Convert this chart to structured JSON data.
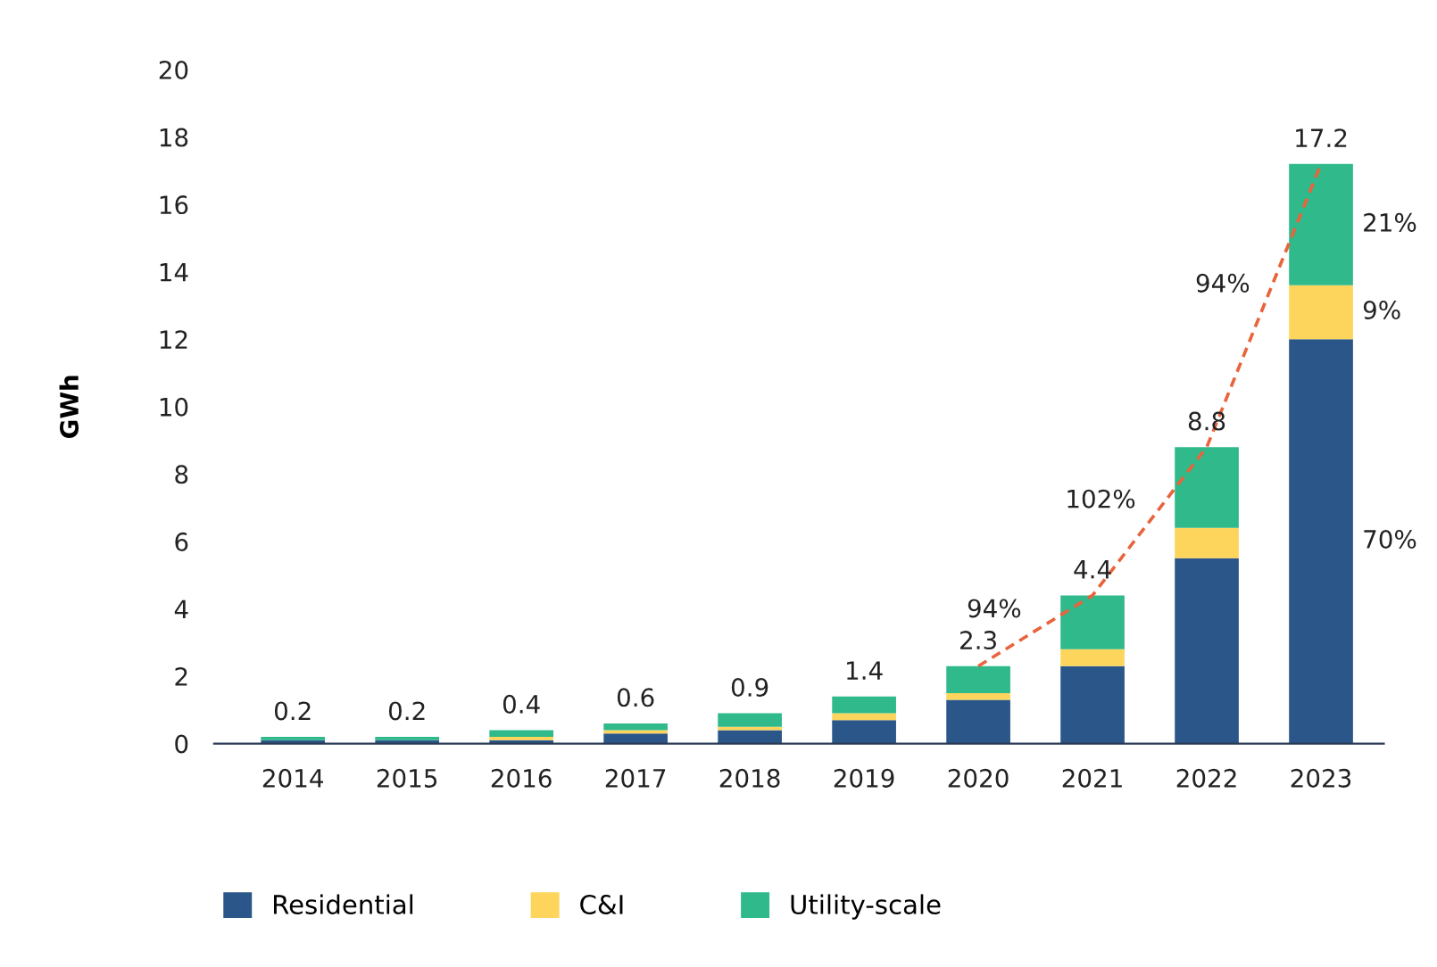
{
  "chart_data": {
    "type": "bar",
    "stacked": true,
    "ylabel": "GWh",
    "categories": [
      "2014",
      "2015",
      "2016",
      "2017",
      "2018",
      "2019",
      "2020",
      "2021",
      "2022",
      "2023"
    ],
    "series": [
      {
        "name": "Residential",
        "color": "#2b5689",
        "values": [
          0.1,
          0.1,
          0.1,
          0.3,
          0.4,
          0.7,
          1.3,
          2.3,
          5.5,
          12.0
        ]
      },
      {
        "name": "C&I",
        "color": "#fdd55c",
        "values": [
          0,
          0,
          0.1,
          0.1,
          0.1,
          0.2,
          0.2,
          0.5,
          0.9,
          1.6
        ]
      },
      {
        "name": "Utility-scale",
        "color": "#30b98a",
        "values": [
          0.1,
          0.1,
          0.2,
          0.2,
          0.4,
          0.5,
          0.8,
          1.6,
          2.4,
          3.6
        ]
      },
      {
        "type": "line",
        "color": "#e8643c",
        "line_style": "dashed",
        "marker": "none",
        "values": [
          null,
          null,
          null,
          null,
          null,
          null,
          2.3,
          4.4,
          8.8,
          17.2
        ]
      }
    ],
    "totals": [
      "0.2",
      "0.2",
      "0.4",
      "0.6",
      "0.9",
      "1.4",
      "2.3",
      "4.4",
      "8.8",
      "17.2"
    ],
    "annotations": [
      "94%",
      "102%",
      "94%",
      "70%",
      "9%",
      "21%"
    ],
    "ylim": [
      0,
      20
    ],
    "yticks": [
      0,
      2,
      4,
      6,
      8,
      10,
      12,
      14,
      16,
      18,
      20
    ],
    "grid": false,
    "legend": "bottom"
  }
}
